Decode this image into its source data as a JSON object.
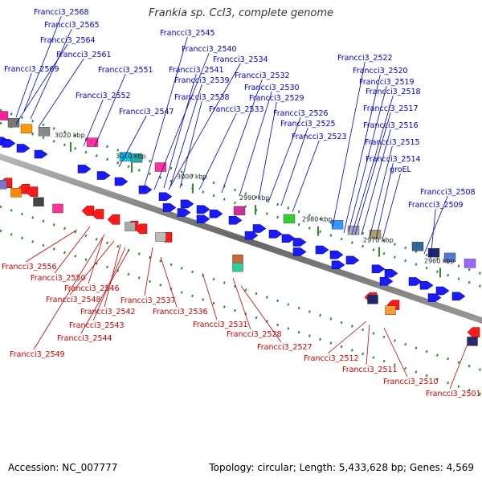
{
  "title": "Frankia sp. CcI3, complete genome",
  "footer": {
    "accession": "Accession: NC_007777",
    "stats": "Topology: circular; Length: 5,433,628 bp; Genes: 4,569"
  },
  "colors": {
    "top_label": "#0000cc",
    "bottom_label": "#cc0000",
    "backbone": "#888888",
    "tick": "#2e8b2e"
  },
  "ticks": [
    "3020 kbp",
    "3010 kbp",
    "3000 kbp",
    "2990 kbp",
    "2980 kbp",
    "2970 kbp",
    "2960 kbp"
  ],
  "top_labels": [
    "Francci3_2568",
    "Francci3_2565",
    "Francci3_2564",
    "Francci3_2561",
    "Francci3_2569",
    "Francci3_2551",
    "Francci3_2552",
    "Francci3_2547",
    "Francci3_2545",
    "Francci3_2540",
    "Francci3_2534",
    "Francci3_2541",
    "Francci3_2539",
    "Francci3_2538",
    "Francci3_2533",
    "Francci3_2532",
    "Francci3_2530",
    "Francci3_2529",
    "Francci3_2526",
    "Francci3_2525",
    "Francci3_2523",
    "Francci3_2522",
    "Francci3_2520",
    "Francci3_2519",
    "Francci3_2518",
    "Francci3_2517",
    "Francci3_2516",
    "Francci3_2515",
    "Francci3_2514",
    "groEL",
    "Francci3_2508",
    "Francci3_2509"
  ],
  "bottom_labels": [
    "Francci3_2556",
    "Francci3_2550",
    "Francci3_2546",
    "Francci3_2548",
    "Francci3_2542",
    "Francci3_2543",
    "Francci3_2544",
    "Francci3_2549",
    "Francci3_2537",
    "Francci3_2536",
    "Francci3_2531",
    "Francci3_2528",
    "Francci3_2527",
    "Francci3_2512",
    "Francci3_2511",
    "Francci3_2510",
    "Francci3_2501"
  ]
}
